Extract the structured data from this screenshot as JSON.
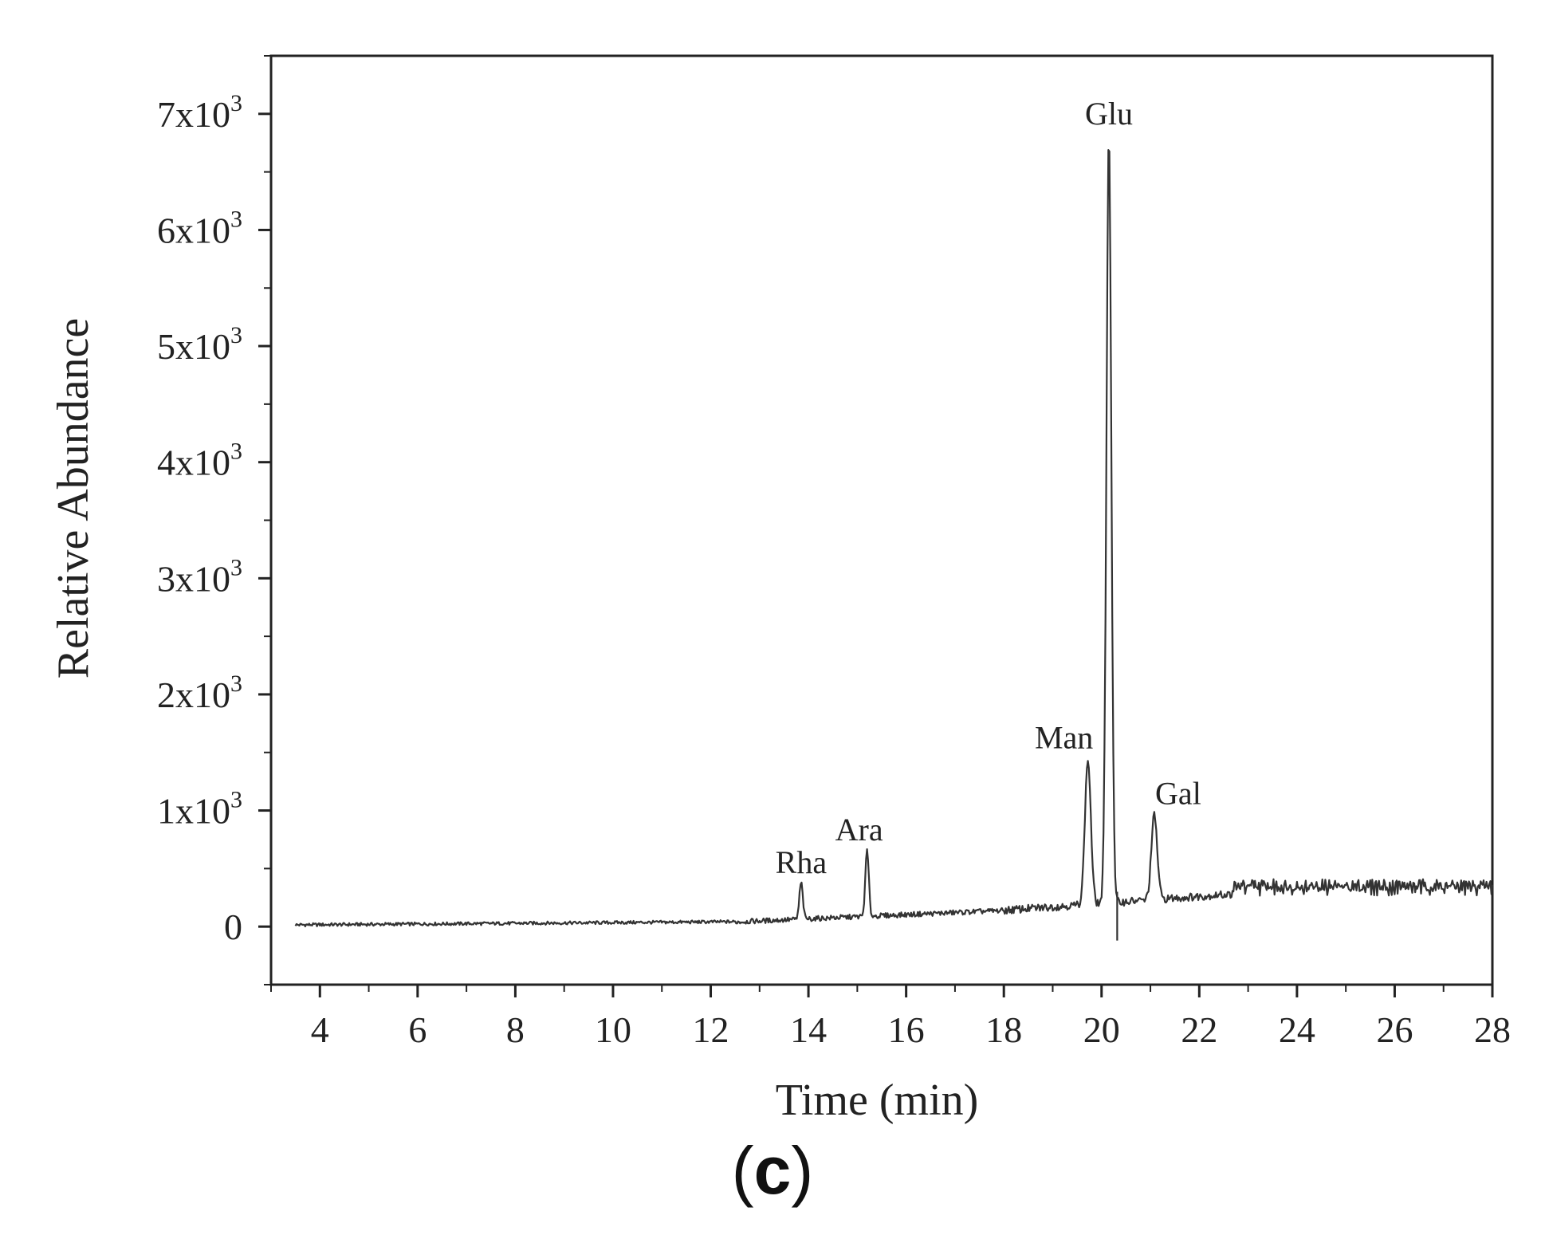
{
  "panel_label_open": "(",
  "panel_label_letter": "c",
  "panel_label_close": ")",
  "chart_data": {
    "type": "line",
    "xlabel": "Time (min)",
    "ylabel": "Relative Abundance",
    "xlim": [
      3,
      28
    ],
    "ylim": [
      -500,
      7500
    ],
    "xticks": [
      4,
      6,
      8,
      10,
      12,
      14,
      16,
      18,
      20,
      22,
      24,
      26,
      28
    ],
    "yticks": [
      {
        "value": 0,
        "mantissa": "0",
        "base": "",
        "exp": ""
      },
      {
        "value": 1000,
        "mantissa": "1",
        "base": "x10",
        "exp": "3"
      },
      {
        "value": 2000,
        "mantissa": "2",
        "base": "x10",
        "exp": "3"
      },
      {
        "value": 3000,
        "mantissa": "3",
        "base": "x10",
        "exp": "3"
      },
      {
        "value": 4000,
        "mantissa": "4",
        "base": "x10",
        "exp": "3"
      },
      {
        "value": 5000,
        "mantissa": "5",
        "base": "x10",
        "exp": "3"
      },
      {
        "value": 6000,
        "mantissa": "6",
        "base": "x10",
        "exp": "3"
      },
      {
        "value": 7000,
        "mantissa": "7",
        "base": "x10",
        "exp": "3"
      }
    ],
    "line_color": "#333333",
    "peaks": [
      {
        "name": "Rha",
        "time": 13.85,
        "height": 380
      },
      {
        "name": "Ara",
        "time": 15.2,
        "height": 660
      },
      {
        "name": "Man",
        "time": 19.72,
        "height": 1440
      },
      {
        "name": "Glu",
        "time": 20.15,
        "height": 6800
      },
      {
        "name": "Gal",
        "time": 21.08,
        "height": 960
      }
    ],
    "grid": false
  }
}
